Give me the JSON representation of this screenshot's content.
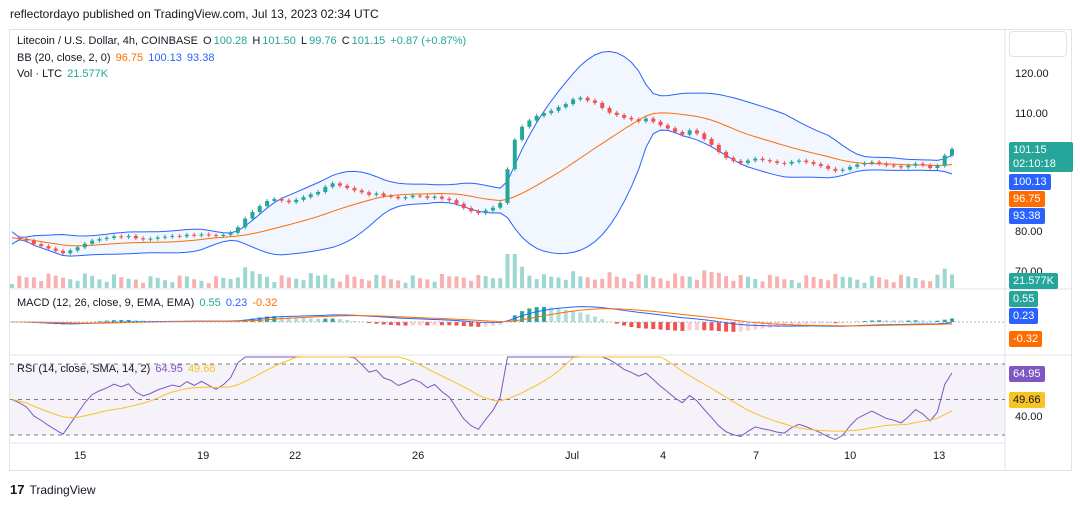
{
  "header": {
    "publisher": "reflectordayo published on TradingView.com, Jul 13, 2023 02:34 UTC"
  },
  "legend": {
    "symbol": "Litecoin / U.S. Dollar, 4h, COINBASE",
    "o_label": "O",
    "o": "100.28",
    "h_label": "H",
    "h": "101.50",
    "l_label": "L",
    "l": "99.76",
    "c_label": "C",
    "c": "101.15",
    "change": "+0.87 (+0.87%)",
    "bb_label": "BB (20, close, 2, 0)",
    "bb_basis": "96.75",
    "bb_upper": "100.13",
    "bb_lower": "93.38",
    "vol_label": "Vol · LTC",
    "vol": "21.577K",
    "macd_label": "MACD (12, 26, close, 9, EMA, EMA)",
    "macd_hist": "0.55",
    "macd_line": "0.23",
    "macd_signal": "-0.32",
    "rsi_label": "RSI (14, close, SMA, 14, 2)",
    "rsi": "64.95",
    "rsi_ma": "49.66"
  },
  "price_axis": {
    "ticks": [
      "120.00",
      "110.00",
      "80.00",
      "70.00"
    ]
  },
  "price_boxes": {
    "close": "101.15",
    "countdown": "02:10:18",
    "upper": "100.13",
    "basis": "96.75",
    "lower": "93.38",
    "vol": "21.577K",
    "macd_hist": "0.55",
    "macd_line": "0.23",
    "macd_signal": "-0.32",
    "rsi": "64.95",
    "rsi_ma": "49.66",
    "rsi_tick": "40.00"
  },
  "time_axis": {
    "labels": [
      "15",
      "19",
      "22",
      "26",
      "Jul",
      "4",
      "7",
      "10",
      "13"
    ]
  },
  "footer": {
    "brand": "TradingView"
  },
  "colors": {
    "up": "#26a69a",
    "down": "#ef5350",
    "bb_band": "#2962ff",
    "bb_basis": "#ff6d00",
    "rsi": "#7e57c2",
    "rsi_ma": "#f7c325"
  },
  "chart_data": [
    {
      "type": "candlestick",
      "title": "Litecoin / U.S. Dollar, 4h, COINBASE",
      "x": [
        "15",
        "19",
        "22",
        "26",
        "Jul",
        "4",
        "7",
        "10",
        "13"
      ],
      "close_series": [
        78.5,
        78.2,
        77.8,
        76.9,
        76.4,
        75.8,
        75.2,
        74.6,
        75.3,
        76.1,
        77.0,
        77.8,
        78.2,
        78.5,
        78.9,
        78.7,
        79.0,
        78.4,
        78.1,
        78.3,
        78.6,
        78.8,
        79.0,
        78.9,
        79.3,
        79.1,
        79.4,
        79.2,
        79.0,
        79.3,
        79.8,
        81.2,
        83.4,
        85.1,
        86.6,
        87.9,
        88.4,
        88.0,
        87.6,
        88.2,
        88.9,
        89.6,
        90.2,
        91.5,
        92.4,
        91.8,
        91.2,
        90.6,
        90.1,
        89.5,
        89.8,
        89.2,
        89.0,
        88.6,
        88.9,
        89.3,
        89.1,
        88.7,
        89.0,
        88.5,
        88.1,
        87.2,
        86.1,
        85.3,
        84.8,
        85.5,
        86.2,
        87.4,
        96.0,
        103.5,
        106.8,
        108.4,
        109.6,
        110.3,
        110.9,
        111.8,
        112.6,
        113.8,
        114.2,
        113.5,
        112.9,
        111.6,
        110.4,
        109.8,
        109.1,
        108.7,
        108.2,
        108.9,
        108.1,
        107.2,
        106.4,
        105.5,
        104.8,
        105.9,
        105.1,
        103.7,
        102.2,
        100.4,
        98.9,
        98.1,
        97.6,
        98.2,
        98.7,
        98.3,
        98.0,
        97.6,
        97.4,
        97.9,
        98.2,
        97.8,
        97.3,
        96.8,
        96.1,
        95.6,
        95.9,
        96.6,
        97.2,
        97.5,
        97.8,
        97.4,
        97.0,
        96.8,
        96.5,
        96.9,
        97.4,
        97.0,
        96.3,
        96.9,
        99.5,
        101.15
      ],
      "bb_upper_last": 100.13,
      "bb_basis_last": 96.75,
      "bb_lower_last": 93.38,
      "volume_last": "21.577K"
    },
    {
      "type": "line",
      "title": "RSI (14, close, SMA, 14, 2)",
      "series": [
        {
          "name": "RSI",
          "last": 64.95
        },
        {
          "name": "SMA",
          "last": 49.66
        }
      ]
    }
  ]
}
